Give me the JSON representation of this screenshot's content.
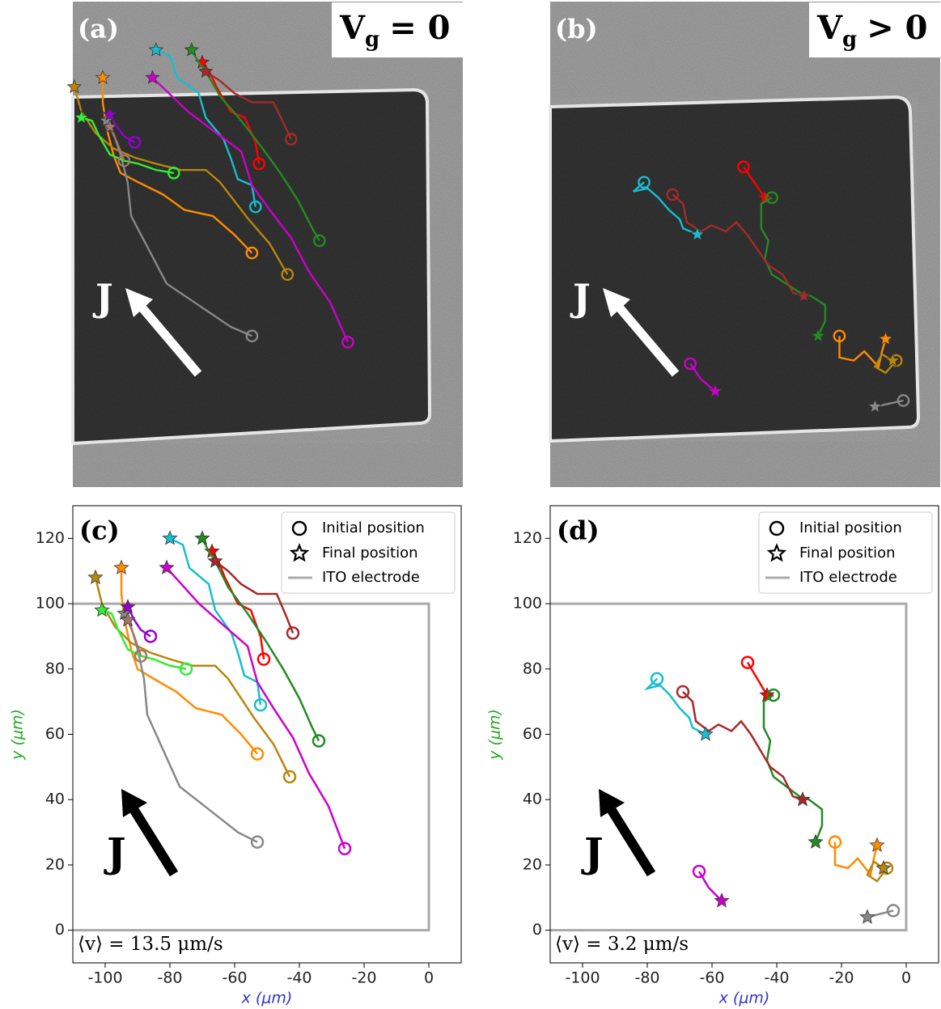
{
  "images": [
    {
      "label": "(a)",
      "condition": {
        "symbol": "V",
        "subscript": "g",
        "relation": "= 0"
      },
      "arrow_label": "J"
    },
    {
      "label": "(b)",
      "condition": {
        "symbol": "V",
        "subscript": "g",
        "relation": "> 0"
      },
      "arrow_label": "J"
    }
  ],
  "chart_data": [
    {
      "type": "line",
      "label": "(c)",
      "annotation": "⟨v⟩ = 13.5 μm/s",
      "arrow_label": "J",
      "xlabel": "x (μm)",
      "ylabel": "y (μm)",
      "xlim": [
        -110,
        10
      ],
      "ylim": [
        -10,
        130
      ],
      "xticks": [
        -100,
        -80,
        -60,
        -40,
        -20,
        0
      ],
      "yticks": [
        0,
        20,
        40,
        60,
        80,
        100,
        120
      ],
      "legend": {
        "corner": "upper right",
        "initial": "Initial position",
        "final": "Final position"
      },
      "electrode": {
        "name": "ITO electrode",
        "color": "#aaaaaa",
        "x": [
          -110,
          0,
          0,
          -110
        ],
        "y": [
          100,
          100,
          0,
          0
        ]
      },
      "series": [
        {
          "color": "#ff0000",
          "x": [
            -51,
            -52,
            -55,
            -59,
            -63,
            -65,
            -67
          ],
          "y": [
            83,
            90,
            98,
            100,
            108,
            113,
            116
          ]
        },
        {
          "color": "#228b22",
          "x": [
            -34,
            -36,
            -40,
            -45,
            -50,
            -56,
            -62,
            -66,
            -68,
            -70
          ],
          "y": [
            58,
            62,
            71,
            80,
            88,
            97,
            105,
            113,
            116,
            120
          ]
        },
        {
          "color": "#a52a2a",
          "x": [
            -42,
            -44,
            -47,
            -53,
            -58,
            -62,
            -66
          ],
          "y": [
            91,
            96,
            103,
            103,
            106,
            110,
            113
          ]
        },
        {
          "color": "#17becf",
          "x": [
            -52,
            -53,
            -57,
            -59,
            -61,
            -66,
            -68,
            -74,
            -76,
            -80
          ],
          "y": [
            69,
            76,
            78,
            85,
            91,
            98,
            106,
            111,
            118,
            120
          ]
        },
        {
          "color": "#cc00cc",
          "x": [
            -26,
            -31,
            -37,
            -42,
            -48,
            -53,
            -56,
            -63,
            -71,
            -81
          ],
          "y": [
            25,
            38,
            48,
            59,
            68,
            76,
            87,
            93,
            100,
            111
          ]
        },
        {
          "color": "#ff8c00",
          "x": [
            -53,
            -58,
            -64,
            -72,
            -78,
            -85,
            -90,
            -92,
            -94,
            -95,
            -95
          ],
          "y": [
            54,
            60,
            66,
            68,
            73,
            77,
            80,
            86,
            95,
            103,
            111
          ]
        },
        {
          "color": "#b8860b",
          "x": [
            -43,
            -48,
            -54,
            -58,
            -62,
            -66,
            -73,
            -80,
            -86,
            -92,
            -97,
            -101,
            -103
          ],
          "y": [
            47,
            57,
            65,
            71,
            77,
            81,
            81,
            83,
            85,
            88,
            93,
            100,
            108
          ]
        },
        {
          "color": "#888888",
          "x": [
            -53,
            -59,
            -68,
            -77,
            -82,
            -87,
            -88,
            -90,
            -92,
            -94
          ],
          "y": [
            27,
            30,
            37,
            44,
            55,
            66,
            77,
            86,
            93,
            97
          ]
        },
        {
          "color": "#33ee33",
          "x": [
            -75,
            -80,
            -85,
            -89,
            -93,
            -96,
            -98,
            -101
          ],
          "y": [
            80,
            81,
            83,
            84,
            86,
            92,
            97,
            98
          ]
        },
        {
          "color": "#9400d3",
          "x": [
            -86,
            -89,
            -91,
            -93
          ],
          "y": [
            90,
            92,
            95,
            99
          ]
        },
        {
          "color": "#a0786b",
          "x": [
            -89,
            -91,
            -93
          ],
          "y": [
            84,
            90,
            95
          ]
        }
      ]
    },
    {
      "type": "line",
      "label": "(d)",
      "annotation": "⟨v⟩ = 3.2 μm/s",
      "arrow_label": "J",
      "xlabel": "x (μm)",
      "ylabel": "y (μm)",
      "xlim": [
        -110,
        10
      ],
      "ylim": [
        -10,
        130
      ],
      "xticks": [
        -100,
        -80,
        -60,
        -40,
        -20,
        0
      ],
      "yticks": [
        0,
        20,
        40,
        60,
        80,
        100,
        120
      ],
      "legend": {
        "corner": "upper right",
        "initial": "Initial position",
        "final": "Final position"
      },
      "electrode": {
        "name": "ITO electrode",
        "color": "#aaaaaa",
        "x": [
          -110,
          0,
          0,
          -110
        ],
        "y": [
          100,
          100,
          0,
          0
        ]
      },
      "series": [
        {
          "color": "#ff0000",
          "x": [
            -49,
            -46,
            -43
          ],
          "y": [
            82,
            77,
            72
          ]
        },
        {
          "color": "#228b22",
          "x": [
            -41,
            -44,
            -44,
            -42,
            -43,
            -41,
            -37,
            -33,
            -30,
            -26,
            -26,
            -28
          ],
          "y": [
            72,
            70,
            62,
            58,
            52,
            47,
            44,
            41,
            40,
            37,
            32,
            27
          ]
        },
        {
          "color": "#a52a2a",
          "x": [
            -69,
            -66,
            -65,
            -61,
            -58,
            -54,
            -51,
            -48,
            -45,
            -42,
            -38,
            -35,
            -32
          ],
          "y": [
            73,
            70,
            64,
            61,
            63,
            61,
            64,
            60,
            55,
            50,
            47,
            41,
            40
          ]
        },
        {
          "color": "#17becf",
          "x": [
            -77,
            -80,
            -76,
            -73,
            -70,
            -67,
            -66,
            -62
          ],
          "y": [
            77,
            74,
            75,
            72,
            68,
            65,
            62,
            60
          ]
        },
        {
          "color": "#ff8c00",
          "x": [
            -22,
            -22,
            -18,
            -15,
            -11,
            -10,
            -9
          ],
          "y": [
            27,
            20,
            19,
            22,
            17,
            22,
            26
          ]
        },
        {
          "color": "#b8860b",
          "x": [
            -6,
            -9,
            -12,
            -10,
            -7
          ],
          "y": [
            19,
            15,
            17,
            21,
            19
          ]
        },
        {
          "color": "#cc00cc",
          "x": [
            -64,
            -61,
            -57
          ],
          "y": [
            18,
            13,
            9
          ]
        },
        {
          "color": "#888888",
          "x": [
            -4,
            -8,
            -12
          ],
          "y": [
            6,
            5,
            4
          ]
        }
      ]
    }
  ]
}
